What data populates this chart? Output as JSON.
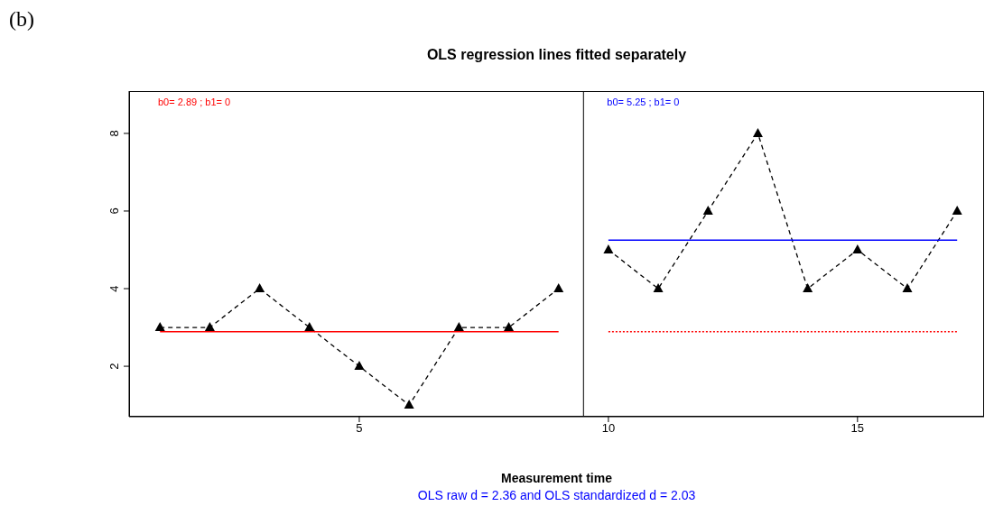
{
  "chart_data": {
    "type": "line",
    "title": "OLS regression lines fitted separately",
    "xlabel": "Measurement time",
    "xlim": [
      0.38,
      17.54
    ],
    "xticks": [
      5,
      10,
      15
    ],
    "ylim": [
      0.7,
      9.09
    ],
    "yticks": [
      2,
      4,
      6,
      8
    ],
    "series": [
      {
        "x": [
          1,
          2,
          3,
          4,
          5,
          6,
          7,
          8,
          9
        ],
        "values": [
          3,
          3,
          4,
          3,
          2,
          1,
          3,
          3,
          4
        ],
        "color": "#000000",
        "line_style": "dashed",
        "marker": "triangle"
      },
      {
        "x": [
          10,
          11,
          12,
          13,
          14,
          15,
          16,
          17
        ],
        "values": [
          5,
          4,
          6,
          8,
          4,
          5,
          4,
          6
        ],
        "color": "#000000",
        "line_style": "dashed",
        "marker": "triangle"
      },
      {
        "x": [
          1,
          9
        ],
        "values": [
          2.89,
          2.89
        ],
        "color": "#ff0000",
        "line_style": "solid",
        "marker": "none"
      },
      {
        "x": [
          10,
          17
        ],
        "values": [
          5.25,
          5.25
        ],
        "color": "#0000ff",
        "line_style": "solid",
        "marker": "none"
      },
      {
        "x": [
          10,
          17
        ],
        "values": [
          2.89,
          2.89
        ],
        "color": "#ff0000",
        "line_style": "dotted",
        "marker": "none"
      }
    ],
    "ref_lines": [
      {
        "axis": "x",
        "value": 9.5,
        "color": "#000000"
      }
    ],
    "annotations": [
      "(b)",
      "b0= 2.89 ; b1= 0",
      "b0= 5.25 ; b1= 0",
      "OLS raw d = 2.36 and OLS standardized d = 2.03"
    ]
  }
}
